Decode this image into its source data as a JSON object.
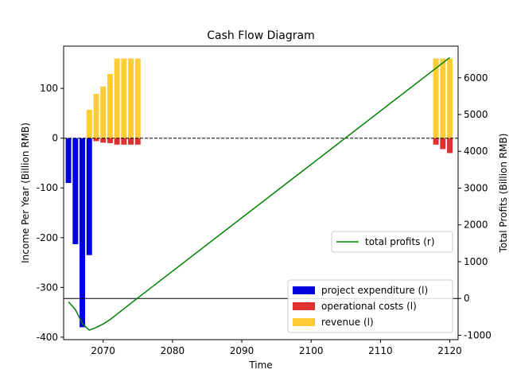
{
  "chart_data": {
    "type": "bar",
    "title": "Cash Flow Diagram",
    "xlabel": "Time",
    "ylabel": "Income Per Year (Billion RMB)",
    "y2label": "Total Profits (Billion RMB)",
    "xlim": [
      2064.3,
      2121.2
    ],
    "ylim": [
      -405,
      185
    ],
    "y2lim": [
      -1120,
      6860
    ],
    "xticks": [
      "2070",
      "2080",
      "2090",
      "2100",
      "2110",
      "2120"
    ],
    "yticks": [
      "-400",
      "-300",
      "-200",
      "-100",
      "0",
      "100"
    ],
    "y2ticks": [
      "-1000",
      "0",
      "1000",
      "2000",
      "3000",
      "4000",
      "5000",
      "6000"
    ],
    "zero_line": "dashed",
    "bar_width": 0.8,
    "series": [
      {
        "name": "project expenditure (l)",
        "color": "#0000dd",
        "axis": "left",
        "x": [
          2065,
          2066,
          2067,
          2068
        ],
        "values": [
          -90,
          -213,
          -380,
          -235
        ]
      },
      {
        "name": "operational costs (l)",
        "color": "#e03030",
        "axis": "left",
        "x": [
          2069,
          2070,
          2071,
          2072,
          2073,
          2074,
          2075,
          2118,
          2119,
          2120
        ],
        "values": [
          -6,
          -9,
          -10,
          -13,
          -13,
          -13,
          -13,
          -13,
          -22,
          -30
        ]
      },
      {
        "name": "revenue (l)",
        "color": "#ffcc33",
        "axis": "left",
        "x": [
          2068,
          2069,
          2070,
          2071,
          2072,
          2073,
          2074,
          2075,
          2118,
          2119,
          2120
        ],
        "values": [
          57,
          89,
          104,
          129,
          160,
          160,
          160,
          160,
          160,
          160,
          160
        ]
      },
      {
        "name": "total profits (r)",
        "color": "#008000",
        "axis": "right",
        "type": "line",
        "x": [
          2065,
          2066,
          2067,
          2068,
          2069,
          2070,
          2071,
          2072,
          2075,
          2120
        ],
        "values": [
          -90,
          -303,
          -683,
          -861,
          -789,
          -694,
          -574,
          -427,
          14,
          6550
        ]
      }
    ],
    "hline_right": 0,
    "legends": [
      {
        "position": "lower-right-upper",
        "entries": [
          "total profits (r)"
        ]
      },
      {
        "position": "lower-right",
        "entries": [
          "project expenditure (l)",
          "operational costs (l)",
          "revenue (l)"
        ]
      }
    ]
  }
}
